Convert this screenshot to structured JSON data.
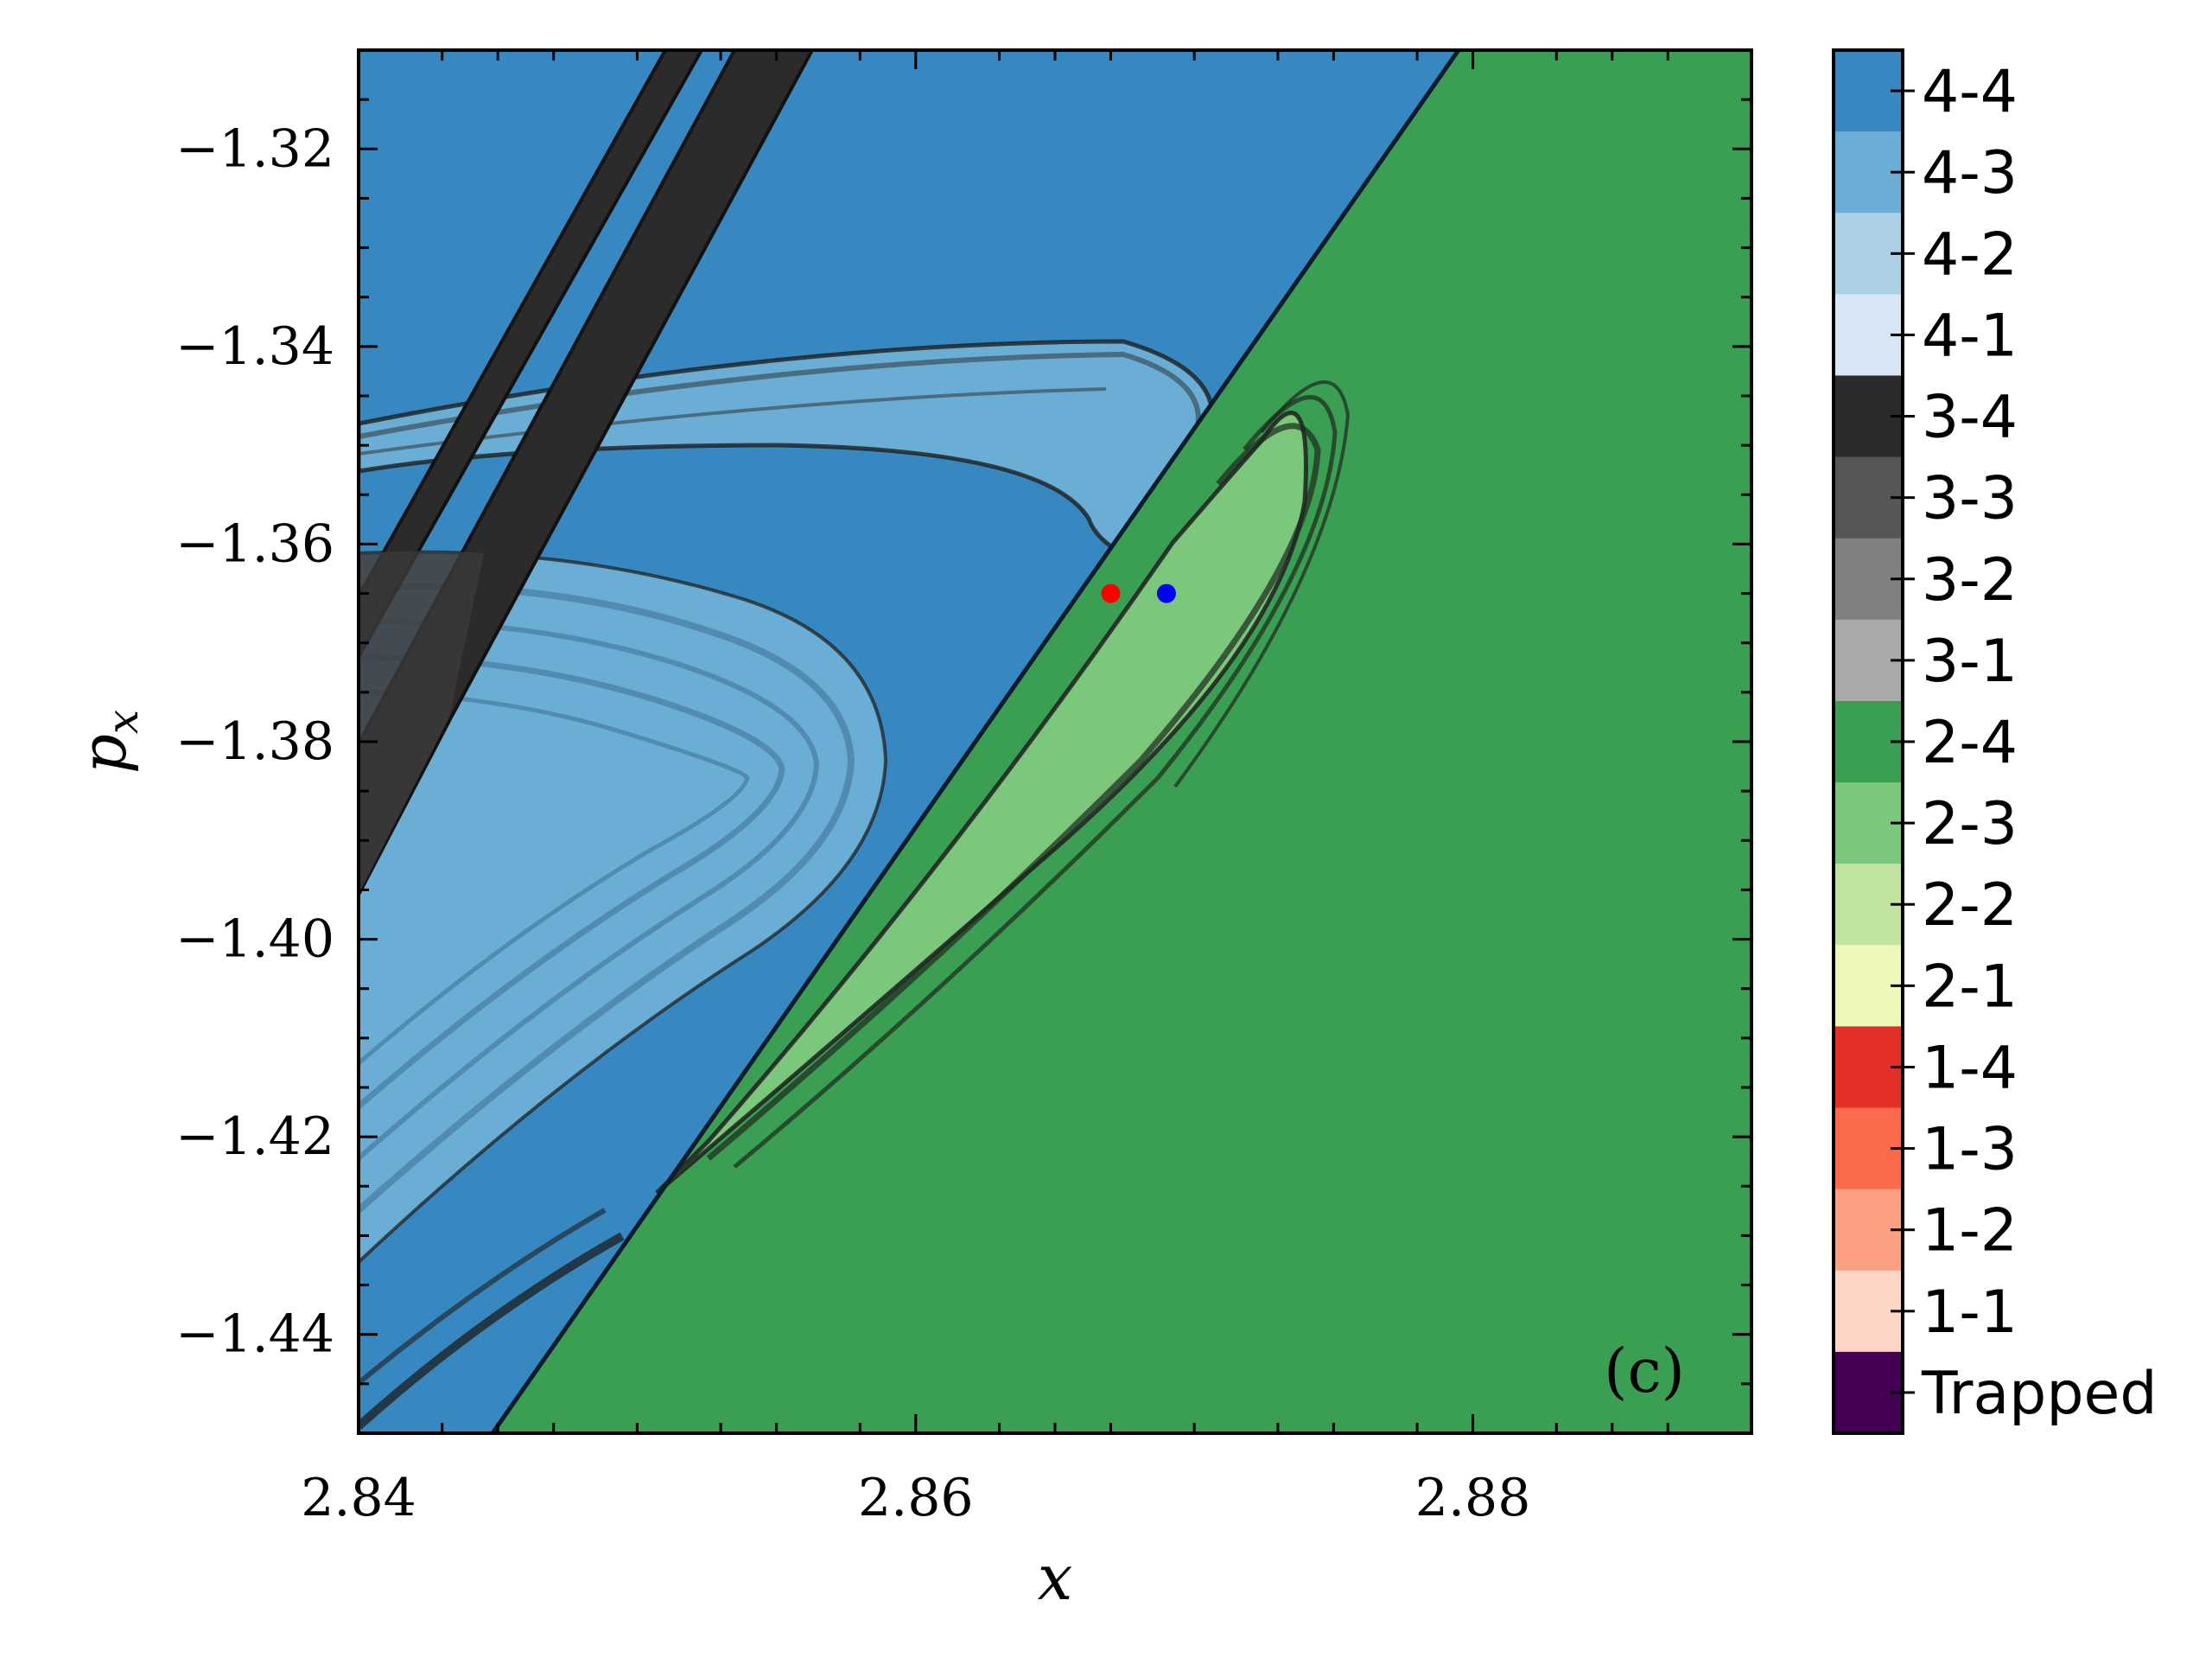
{
  "chart_data": {
    "type": "heatmap",
    "panel_label": "(c)",
    "xlabel": "x",
    "ylabel_base": "p",
    "ylabel_sub": "x",
    "xlim": [
      2.84,
      2.89
    ],
    "ylim": [
      -1.45,
      -1.31
    ],
    "x_ticks": [
      {
        "value": 2.84,
        "label": "2.84"
      },
      {
        "value": 2.86,
        "label": "2.86"
      },
      {
        "value": 2.88,
        "label": "2.88"
      }
    ],
    "y_ticks": [
      {
        "value": -1.32,
        "label": "−1.32"
      },
      {
        "value": -1.34,
        "label": "−1.34"
      },
      {
        "value": -1.36,
        "label": "−1.36"
      },
      {
        "value": -1.38,
        "label": "−1.38"
      },
      {
        "value": -1.4,
        "label": "−1.40"
      },
      {
        "value": -1.42,
        "label": "−1.42"
      },
      {
        "value": -1.44,
        "label": "−1.44"
      }
    ],
    "colorbar": [
      {
        "label": "4-4",
        "color": "#3787c0"
      },
      {
        "label": "4-3",
        "color": "#6aaed6"
      },
      {
        "label": "4-2",
        "color": "#abd0e6"
      },
      {
        "label": "4-1",
        "color": "#d6e6f4"
      },
      {
        "label": "3-4",
        "color": "#2b2b2b"
      },
      {
        "label": "3-3",
        "color": "#565656"
      },
      {
        "label": "3-2",
        "color": "#808080"
      },
      {
        "label": "3-1",
        "color": "#aaaaaa"
      },
      {
        "label": "2-4",
        "color": "#3a9e53"
      },
      {
        "label": "2-3",
        "color": "#7bc77c"
      },
      {
        "label": "2-2",
        "color": "#c1e4a0"
      },
      {
        "label": "2-1",
        "color": "#edf8bb"
      },
      {
        "label": "1-4",
        "color": "#e32f27"
      },
      {
        "label": "1-3",
        "color": "#fb6b4b"
      },
      {
        "label": "1-2",
        "color": "#fca083"
      },
      {
        "label": "1-1",
        "color": "#fdd5c4"
      },
      {
        "label": "Trapped",
        "color": "#440154"
      }
    ],
    "regions": {
      "blue_region": {
        "class": "4-4",
        "boundary_top_x": 2.8795,
        "boundary_bottom_x": 2.8444
      },
      "green_region": {
        "class": "2-4"
      }
    },
    "markers": [
      {
        "x": 2.867,
        "y": -1.365,
        "color": "#ff0000"
      },
      {
        "x": 2.869,
        "y": -1.365,
        "color": "#0000ff"
      }
    ]
  }
}
